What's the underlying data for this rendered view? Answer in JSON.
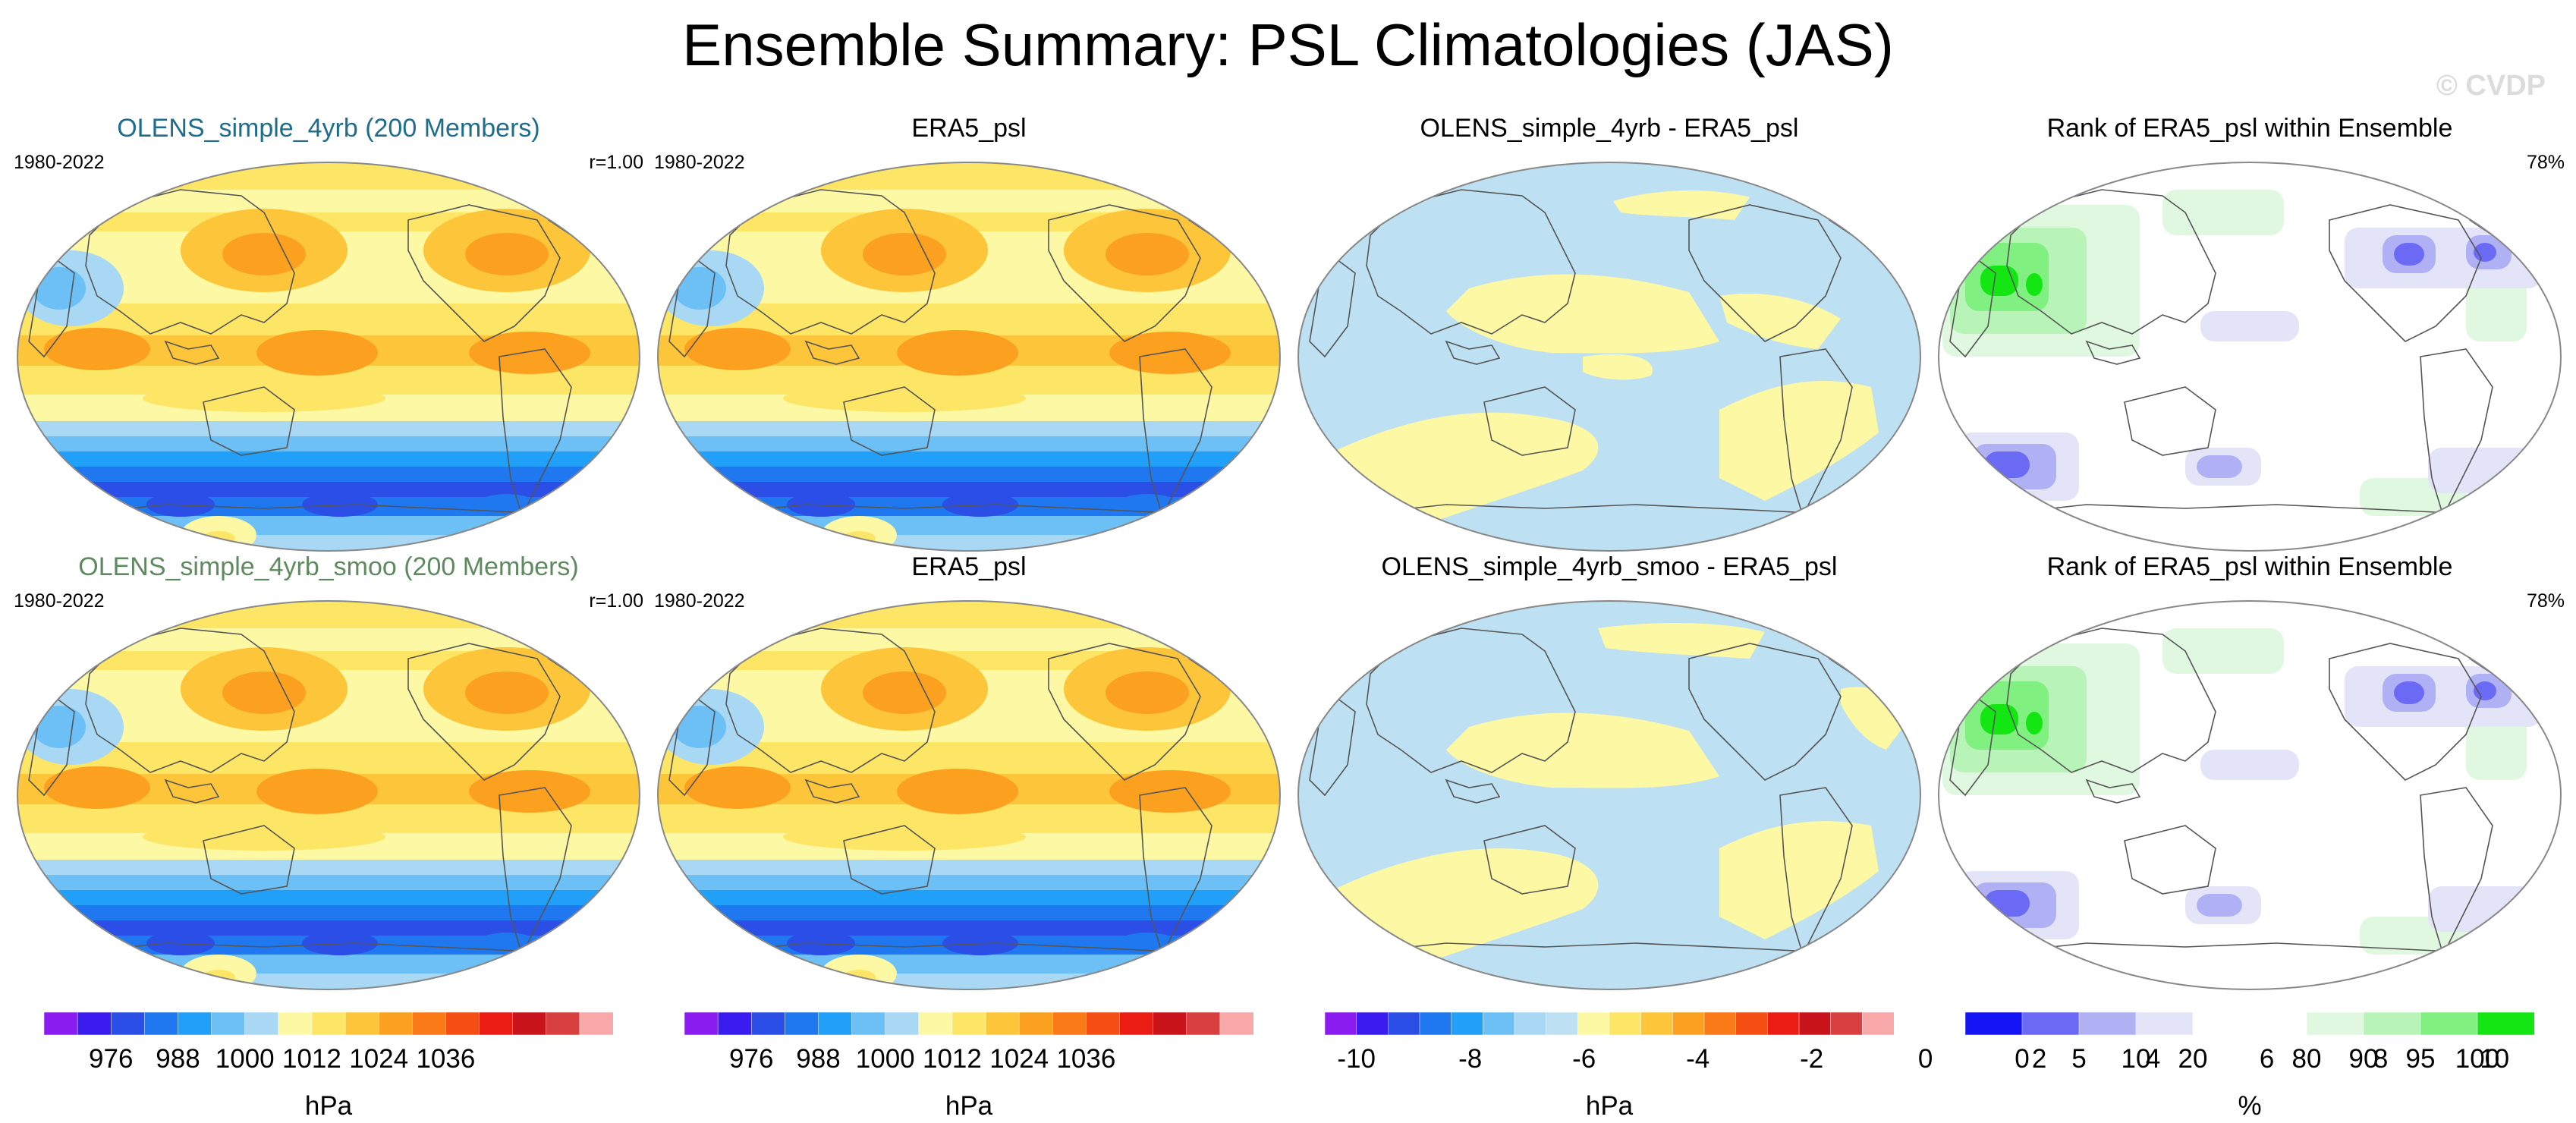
{
  "title": "Ensemble Summary: PSL Climatologies (JAS)",
  "watermark": "© CVDP",
  "rows": [
    {
      "panels": [
        {
          "title": "OLENS_simple_4yrb (200 Members)",
          "title_color": "#1f6d8c",
          "left": "1980-2022",
          "right": "r=1.00",
          "type": "abs"
        },
        {
          "title": "ERA5_psl",
          "title_color": "#000000",
          "left": "1980-2022",
          "right": "",
          "type": "abs"
        },
        {
          "title": "OLENS_simple_4yrb - ERA5_psl",
          "title_color": "#000000",
          "left": "",
          "right": "",
          "type": "diff"
        },
        {
          "title": "Rank of ERA5_psl within Ensemble",
          "title_color": "#000000",
          "left": "",
          "right": "78%",
          "type": "rank"
        }
      ]
    },
    {
      "panels": [
        {
          "title": "OLENS_simple_4yrb_smoo (200 Members)",
          "title_color": "#5f8a5f",
          "left": "1980-2022",
          "right": "r=1.00",
          "type": "abs"
        },
        {
          "title": "ERA5_psl",
          "title_color": "#000000",
          "left": "1980-2022",
          "right": "",
          "type": "abs"
        },
        {
          "title": "OLENS_simple_4yrb_smoo - ERA5_psl",
          "title_color": "#000000",
          "left": "",
          "right": "",
          "type": "diff"
        },
        {
          "title": "Rank of ERA5_psl within Ensemble",
          "title_color": "#000000",
          "left": "",
          "right": "78%",
          "type": "rank"
        }
      ]
    }
  ],
  "colorbars": [
    {
      "unit": "hPa",
      "ticks": [
        "976",
        "988",
        "1000",
        "1012",
        "1024",
        "1036"
      ],
      "colors": [
        "#8a1cf0",
        "#3a1cf0",
        "#2a4ee6",
        "#1f78f0",
        "#20a0f8",
        "#6cc0f6",
        "#a8d8f4",
        "#fdf8a4",
        "#fde566",
        "#fdc53a",
        "#fca020",
        "#fa7a18",
        "#f54e14",
        "#ea1c14",
        "#c8141a",
        "#d84040",
        "#f8a8a8"
      ]
    },
    {
      "unit": "hPa",
      "ticks": [
        "976",
        "988",
        "1000",
        "1012",
        "1024",
        "1036"
      ],
      "colors": [
        "#8a1cf0",
        "#3a1cf0",
        "#2a4ee6",
        "#1f78f0",
        "#20a0f8",
        "#6cc0f6",
        "#a8d8f4",
        "#fdf8a4",
        "#fde566",
        "#fdc53a",
        "#fca020",
        "#fa7a18",
        "#f54e14",
        "#ea1c14",
        "#c8141a",
        "#d84040",
        "#f8a8a8"
      ]
    },
    {
      "unit": "hPa",
      "ticks": [
        "-10",
        "-8",
        "-6",
        "-4",
        "-2",
        "0",
        "2",
        "4",
        "6",
        "8",
        "10"
      ],
      "colors": [
        "#8a1cf0",
        "#3a1cf0",
        "#2a4ee6",
        "#1f78f0",
        "#20a0f8",
        "#6cc0f6",
        "#a8d8f4",
        "#bde0f2",
        "#fdf8a4",
        "#fde566",
        "#fdc53a",
        "#fca020",
        "#fa7a18",
        "#f54e14",
        "#ea1c14",
        "#c8141a",
        "#d84040",
        "#f8a8a8"
      ]
    },
    {
      "unit": "%",
      "ticks": [
        "0",
        "5",
        "10",
        "20",
        "80",
        "90",
        "95",
        "100"
      ],
      "colors": [
        "#1414f5",
        "#6a6af5",
        "#b0b0f5",
        "#e4e4f8",
        "#ffffff",
        "#ffffff",
        "#e0f8e0",
        "#b8f4b8",
        "#80f080",
        "#14e614"
      ]
    }
  ]
}
